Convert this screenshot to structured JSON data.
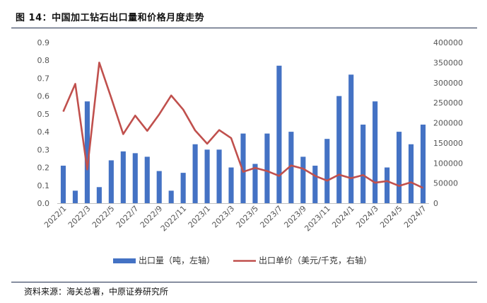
{
  "figure": {
    "title": "图 14：中国加工钻石出口量和价格月度走势",
    "source": "资料来源：海关总署，中原证券研究所"
  },
  "chart_data": {
    "type": "bar+line",
    "categories": [
      "2022/1",
      "2022/2",
      "2022/3",
      "2022/4",
      "2022/5",
      "2022/6",
      "2022/7",
      "2022/8",
      "2022/9",
      "2022/10",
      "2022/11",
      "2022/12",
      "2023/1",
      "2023/2",
      "2023/3",
      "2023/4",
      "2023/5",
      "2023/6",
      "2023/7",
      "2023/8",
      "2023/9",
      "2023/10",
      "2023/11",
      "2023/12",
      "2024/1",
      "2024/2",
      "2024/3",
      "2024/4",
      "2024/5",
      "2024/6",
      "2024/7"
    ],
    "x_tick_labels": [
      "2022/1",
      "2022/3",
      "2022/5",
      "2022/7",
      "2022/9",
      "2022/11",
      "2023/1",
      "2023/3",
      "2023/5",
      "2023/7",
      "2023/9",
      "2023/11",
      "2024/1",
      "2024/3",
      "2024/5",
      "2024/7"
    ],
    "series": [
      {
        "name": "出口量（吨，左轴）",
        "type": "bar",
        "axis": "left",
        "color": "#4472c4",
        "values": [
          0.21,
          0.07,
          0.57,
          0.09,
          0.24,
          0.29,
          0.28,
          0.26,
          0.18,
          0.07,
          0.17,
          0.33,
          0.3,
          0.3,
          0.2,
          0.39,
          0.22,
          0.39,
          0.77,
          0.4,
          0.26,
          0.21,
          0.36,
          0.6,
          0.72,
          0.44,
          0.57,
          0.2,
          0.4,
          0.33,
          0.44
        ]
      },
      {
        "name": "出口单价（美元/千克，右轴）",
        "type": "line",
        "axis": "right",
        "color": "#c0504d",
        "values": [
          228000,
          297000,
          84000,
          350000,
          262000,
          172000,
          218000,
          180000,
          221000,
          268000,
          233000,
          181000,
          148000,
          182000,
          162000,
          78000,
          88000,
          80000,
          68000,
          94000,
          86000,
          68000,
          56000,
          71000,
          62000,
          70000,
          51000,
          55000,
          43000,
          52000,
          38000
        ]
      }
    ],
    "y_left": {
      "min": 0,
      "max": 0.9,
      "ticks": [
        "0.0",
        "0.1",
        "0.2",
        "0.3",
        "0.4",
        "0.5",
        "0.6",
        "0.7",
        "0.8",
        "0.9"
      ]
    },
    "y_right": {
      "min": 0,
      "max": 400000,
      "ticks": [
        "0",
        "50000",
        "100000",
        "150000",
        "200000",
        "250000",
        "300000",
        "350000",
        "400000"
      ]
    },
    "grid": false,
    "legend": "bottom"
  }
}
